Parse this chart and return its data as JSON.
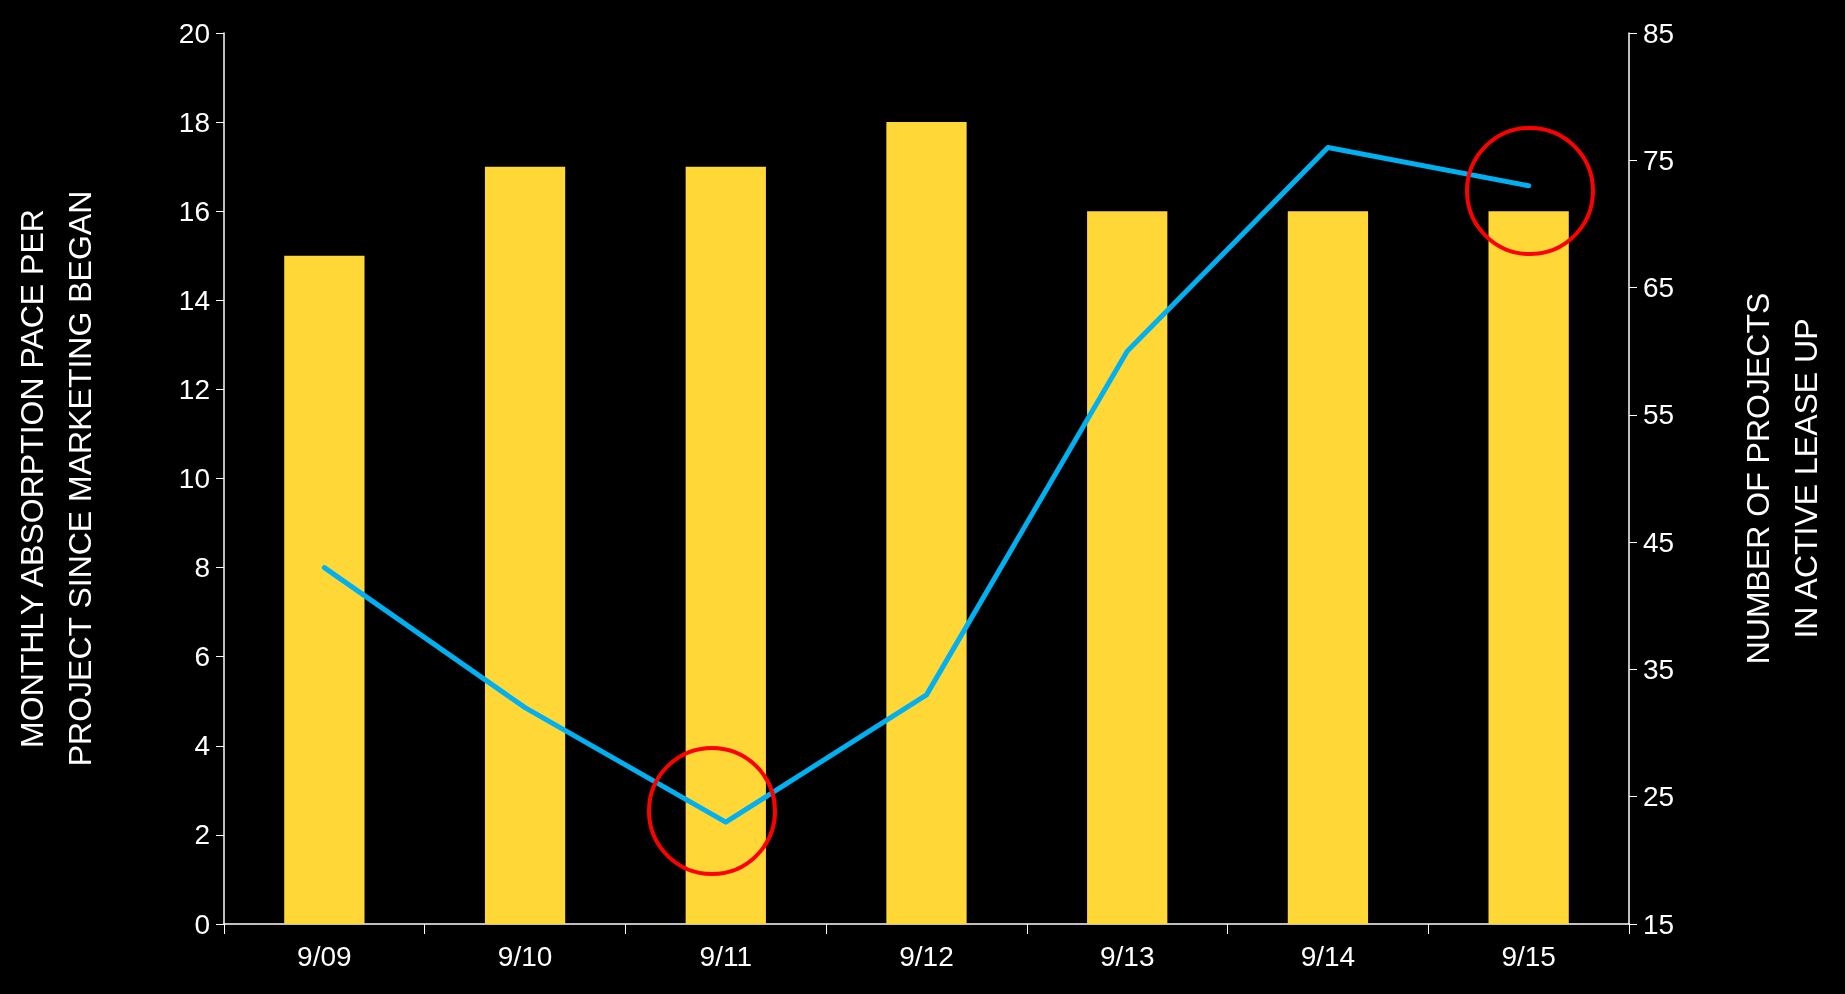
{
  "chart_data": {
    "type": "bar",
    "categories": [
      "9/09",
      "9/10",
      "9/11",
      "9/12",
      "9/13",
      "9/14",
      "9/15"
    ],
    "series": [
      {
        "color": "#ffd737",
        "values": [
          15,
          17,
          17,
          18,
          16,
          16,
          16
        ]
      },
      {
        "type": "line",
        "axis": "y2",
        "color": "#00b0f0",
        "values": [
          43,
          32,
          23,
          33,
          60,
          76,
          73
        ]
      }
    ],
    "ylabel": "MONTHLY ABSORPTION PACE PER\nPROJECT SINCE MARKETING BEGAN",
    "y2label": "NUMBER OF PROJECTS\nIN ACTIVE LEASE UP",
    "ylim": [
      0,
      20
    ],
    "yticks": [
      0,
      2,
      4,
      6,
      8,
      10,
      12,
      14,
      16,
      18,
      20
    ],
    "y2lim": [
      15,
      85
    ],
    "y2ticks": [
      15,
      25,
      35,
      45,
      55,
      65,
      75,
      85
    ],
    "grid": false,
    "marker": "none",
    "line_style": "solid"
  }
}
